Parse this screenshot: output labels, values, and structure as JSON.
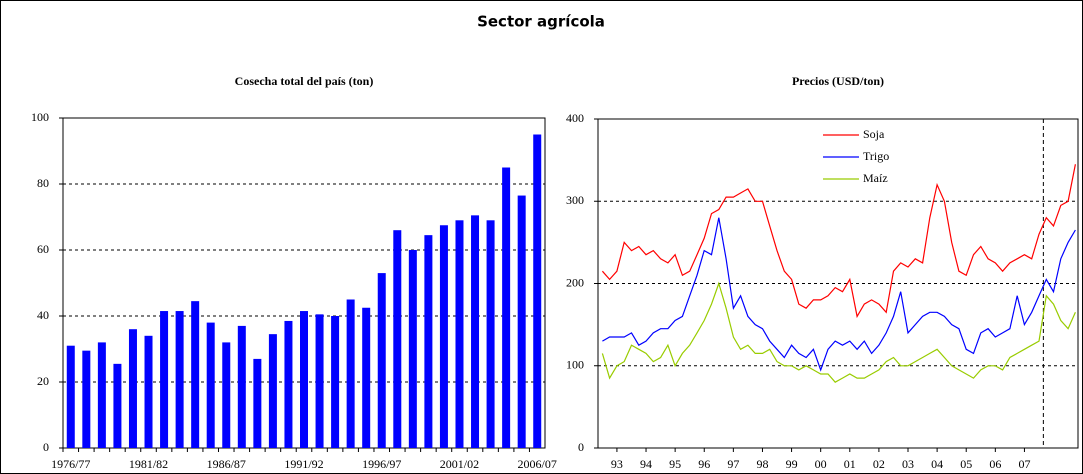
{
  "title": "Sector agrícola",
  "chart_data": [
    {
      "type": "bar",
      "title": "Cosecha total del país (ton)",
      "categories": [
        "1976/77",
        null,
        null,
        null,
        null,
        "1981/82",
        null,
        null,
        null,
        null,
        "1986/87",
        null,
        null,
        null,
        null,
        "1991/92",
        null,
        null,
        null,
        null,
        "1996/97",
        null,
        null,
        null,
        null,
        "2001/02",
        null,
        null,
        null,
        null,
        "2006/07"
      ],
      "values": [
        31,
        29.5,
        32,
        25.5,
        36,
        34,
        41.5,
        41.5,
        44.5,
        38,
        32,
        37,
        27,
        34.5,
        38.5,
        41.5,
        40.5,
        40,
        45,
        42.5,
        53,
        66,
        60,
        64.5,
        67.5,
        69,
        70.5,
        69,
        85,
        76.5,
        95
      ],
      "color": "#0000ff",
      "ylim": [
        0,
        100
      ],
      "yticks": [
        0,
        20,
        40,
        60,
        80,
        100
      ],
      "grid": true
    },
    {
      "type": "line",
      "title": "Precios (USD/ton)",
      "x": [
        1992.5,
        1992.75,
        1993,
        1993.25,
        1993.5,
        1993.75,
        1994,
        1994.25,
        1994.5,
        1994.75,
        1995,
        1995.25,
        1995.5,
        1995.75,
        1996,
        1996.25,
        1996.5,
        1996.75,
        1997,
        1997.25,
        1997.5,
        1997.75,
        1998,
        1998.25,
        1998.5,
        1998.75,
        1999,
        1999.25,
        1999.5,
        1999.75,
        2000,
        2000.25,
        2000.5,
        2000.75,
        2001,
        2001.25,
        2001.5,
        2001.75,
        2002,
        2002.25,
        2002.5,
        2002.75,
        2003,
        2003.25,
        2003.5,
        2003.75,
        2004,
        2004.25,
        2004.5,
        2004.75,
        2005,
        2005.25,
        2005.5,
        2005.75,
        2006,
        2006.25,
        2006.5,
        2006.75,
        2007,
        2007.25,
        2007.5,
        2007.75,
        2008,
        2008.25,
        2008.5,
        2008.75
      ],
      "series": [
        {
          "name": "Soja",
          "color": "#ff0000",
          "values": [
            215,
            205,
            215,
            250,
            240,
            245,
            235,
            240,
            230,
            225,
            235,
            210,
            215,
            235,
            255,
            285,
            290,
            305,
            305,
            310,
            315,
            300,
            300,
            270,
            240,
            215,
            205,
            175,
            170,
            180,
            180,
            185,
            195,
            190,
            205,
            160,
            175,
            180,
            175,
            165,
            215,
            225,
            220,
            230,
            225,
            280,
            320,
            300,
            250,
            215,
            210,
            235,
            245,
            230,
            225,
            215,
            225,
            230,
            235,
            230,
            260,
            280,
            270,
            295,
            300,
            345
          ]
        },
        {
          "name": "Trigo",
          "color": "#0000ff",
          "values": [
            130,
            135,
            135,
            135,
            140,
            125,
            130,
            140,
            145,
            145,
            155,
            160,
            185,
            210,
            240,
            235,
            280,
            230,
            170,
            185,
            160,
            150,
            145,
            130,
            120,
            110,
            125,
            115,
            110,
            120,
            95,
            120,
            130,
            125,
            130,
            120,
            130,
            115,
            125,
            140,
            160,
            190,
            140,
            150,
            160,
            165,
            165,
            160,
            150,
            145,
            120,
            115,
            140,
            145,
            135,
            140,
            145,
            185,
            150,
            165,
            185,
            205,
            190,
            230,
            250,
            265
          ]
        },
        {
          "name": "Maíz",
          "color": "#99cc00",
          "values": [
            115,
            85,
            100,
            105,
            125,
            120,
            115,
            105,
            110,
            125,
            100,
            115,
            125,
            140,
            155,
            175,
            200,
            170,
            135,
            120,
            125,
            115,
            115,
            120,
            105,
            100,
            100,
            95,
            100,
            95,
            90,
            90,
            80,
            85,
            90,
            85,
            85,
            90,
            95,
            105,
            110,
            100,
            100,
            105,
            110,
            115,
            120,
            110,
            100,
            95,
            90,
            85,
            95,
            100,
            100,
            95,
            110,
            115,
            120,
            125,
            130,
            185,
            175,
            155,
            145,
            165
          ]
        }
      ],
      "xlim": [
        1992.35,
        2008.84
      ],
      "xticks": [
        {
          "value": 1993,
          "label": "93"
        },
        {
          "value": 1994,
          "label": "94"
        },
        {
          "value": 1995,
          "label": "95"
        },
        {
          "value": 1996,
          "label": "96"
        },
        {
          "value": 1997,
          "label": "97"
        },
        {
          "value": 1998,
          "label": "98"
        },
        {
          "value": 1999,
          "label": "99"
        },
        {
          "value": 2000,
          "label": "00"
        },
        {
          "value": 2001,
          "label": "01"
        },
        {
          "value": 2002,
          "label": "02"
        },
        {
          "value": 2003,
          "label": "03"
        },
        {
          "value": 2004,
          "label": "04"
        },
        {
          "value": 2005,
          "label": "05"
        },
        {
          "value": 2006,
          "label": "06"
        },
        {
          "value": 2007,
          "label": "07"
        }
      ],
      "ylim": [
        0,
        400
      ],
      "yticks": [
        0,
        100,
        200,
        300,
        400
      ],
      "grid": true,
      "legend": "top",
      "vline": 2007.65
    }
  ]
}
